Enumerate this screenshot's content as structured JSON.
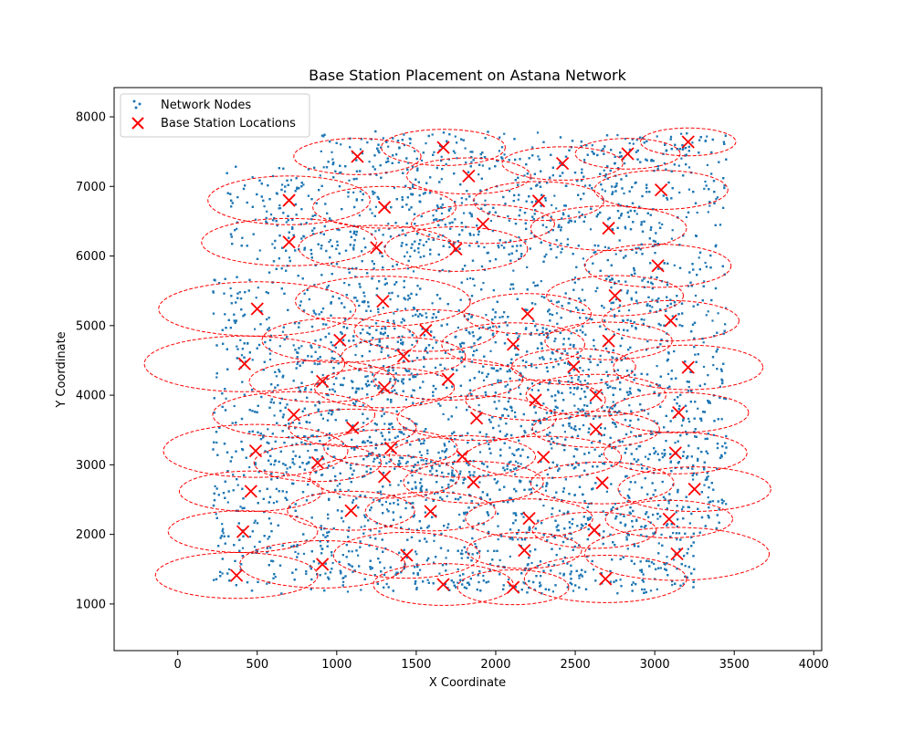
{
  "chart_data": {
    "type": "scatter",
    "title": "Base Station Placement on Astana Network",
    "xlabel": "X Coordinate",
    "ylabel": "Y Coordinate",
    "xlim": [
      -400,
      4050
    ],
    "ylim": [
      330,
      8420
    ],
    "xticks": [
      0,
      500,
      1000,
      1500,
      2000,
      2500,
      3000,
      3500,
      4000
    ],
    "yticks": [
      1000,
      2000,
      3000,
      4000,
      5000,
      6000,
      7000,
      8000
    ],
    "grid": false,
    "legend": {
      "placement": "top-left",
      "entries": [
        "Network Nodes",
        "Base Station Locations"
      ]
    },
    "colors": {
      "nodes": "#1f77b4",
      "stations": "#ff0000",
      "coverage": "#ff0000"
    },
    "node_region": {
      "x": [
        220,
        3450
      ],
      "y": [
        1150,
        7800
      ],
      "approx_count": 9000
    },
    "series": [
      {
        "name": "Base Station Locations",
        "marker": "x",
        "points": [
          [
            1130,
            7430
          ],
          [
            1670,
            7560
          ],
          [
            2420,
            7330
          ],
          [
            2830,
            7470
          ],
          [
            3210,
            7640
          ],
          [
            1830,
            7150
          ],
          [
            700,
            6800
          ],
          [
            1300,
            6700
          ],
          [
            2270,
            6790
          ],
          [
            3040,
            6950
          ],
          [
            1920,
            6460
          ],
          [
            2710,
            6400
          ],
          [
            700,
            6200
          ],
          [
            1250,
            6120
          ],
          [
            1750,
            6100
          ],
          [
            3020,
            5860
          ],
          [
            2750,
            5430
          ],
          [
            500,
            5240
          ],
          [
            1290,
            5350
          ],
          [
            2200,
            5170
          ],
          [
            1560,
            4930
          ],
          [
            1020,
            4790
          ],
          [
            2110,
            4730
          ],
          [
            2710,
            4780
          ],
          [
            3100,
            5070
          ],
          [
            420,
            4450
          ],
          [
            1420,
            4560
          ],
          [
            2490,
            4410
          ],
          [
            3210,
            4400
          ],
          [
            910,
            4200
          ],
          [
            1300,
            4110
          ],
          [
            1700,
            4230
          ],
          [
            2250,
            3930
          ],
          [
            2630,
            4000
          ],
          [
            730,
            3720
          ],
          [
            1100,
            3530
          ],
          [
            1880,
            3670
          ],
          [
            2630,
            3510
          ],
          [
            3150,
            3750
          ],
          [
            490,
            3200
          ],
          [
            1340,
            3240
          ],
          [
            1790,
            3120
          ],
          [
            2300,
            3110
          ],
          [
            3130,
            3170
          ],
          [
            880,
            3030
          ],
          [
            1300,
            2830
          ],
          [
            1860,
            2750
          ],
          [
            2670,
            2740
          ],
          [
            3250,
            2650
          ],
          [
            460,
            2620
          ],
          [
            1090,
            2340
          ],
          [
            1590,
            2330
          ],
          [
            2210,
            2230
          ],
          [
            2620,
            2060
          ],
          [
            3090,
            2220
          ],
          [
            410,
            2040
          ],
          [
            2180,
            1770
          ],
          [
            910,
            1570
          ],
          [
            1440,
            1700
          ],
          [
            3140,
            1720
          ],
          [
            370,
            1410
          ],
          [
            1670,
            1280
          ],
          [
            2110,
            1240
          ],
          [
            2690,
            1360
          ]
        ],
        "coverage_radii": [
          [
            400,
            260
          ],
          [
            390,
            260
          ],
          [
            380,
            240
          ],
          [
            330,
            220
          ],
          [
            300,
            200
          ],
          [
            390,
            260
          ],
          [
            510,
            350
          ],
          [
            450,
            300
          ],
          [
            410,
            280
          ],
          [
            420,
            280
          ],
          [
            450,
            280
          ],
          [
            490,
            320
          ],
          [
            550,
            340
          ],
          [
            490,
            320
          ],
          [
            450,
            320
          ],
          [
            460,
            310
          ],
          [
            430,
            290
          ],
          [
            620,
            390
          ],
          [
            550,
            360
          ],
          [
            400,
            290
          ],
          [
            450,
            300
          ],
          [
            490,
            320
          ],
          [
            450,
            310
          ],
          [
            400,
            270
          ],
          [
            430,
            290
          ],
          [
            630,
            400
          ],
          [
            390,
            270
          ],
          [
            390,
            260
          ],
          [
            470,
            320
          ],
          [
            460,
            300
          ],
          [
            440,
            290
          ],
          [
            470,
            300
          ],
          [
            440,
            290
          ],
          [
            440,
            300
          ],
          [
            510,
            330
          ],
          [
            400,
            270
          ],
          [
            500,
            320
          ],
          [
            400,
            260
          ],
          [
            440,
            290
          ],
          [
            580,
            380
          ],
          [
            420,
            270
          ],
          [
            460,
            300
          ],
          [
            490,
            300
          ],
          [
            450,
            300
          ],
          [
            400,
            270
          ],
          [
            470,
            310
          ],
          [
            440,
            300
          ],
          [
            450,
            300
          ],
          [
            480,
            320
          ],
          [
            450,
            290
          ],
          [
            400,
            280
          ],
          [
            410,
            280
          ],
          [
            400,
            280
          ],
          [
            390,
            260
          ],
          [
            400,
            270
          ],
          [
            470,
            300
          ],
          [
            360,
            260
          ],
          [
            520,
            340
          ],
          [
            460,
            330
          ],
          [
            580,
            380
          ],
          [
            510,
            330
          ],
          [
            440,
            300
          ],
          [
            350,
            250
          ],
          [
            510,
            340
          ]
        ]
      }
    ]
  }
}
